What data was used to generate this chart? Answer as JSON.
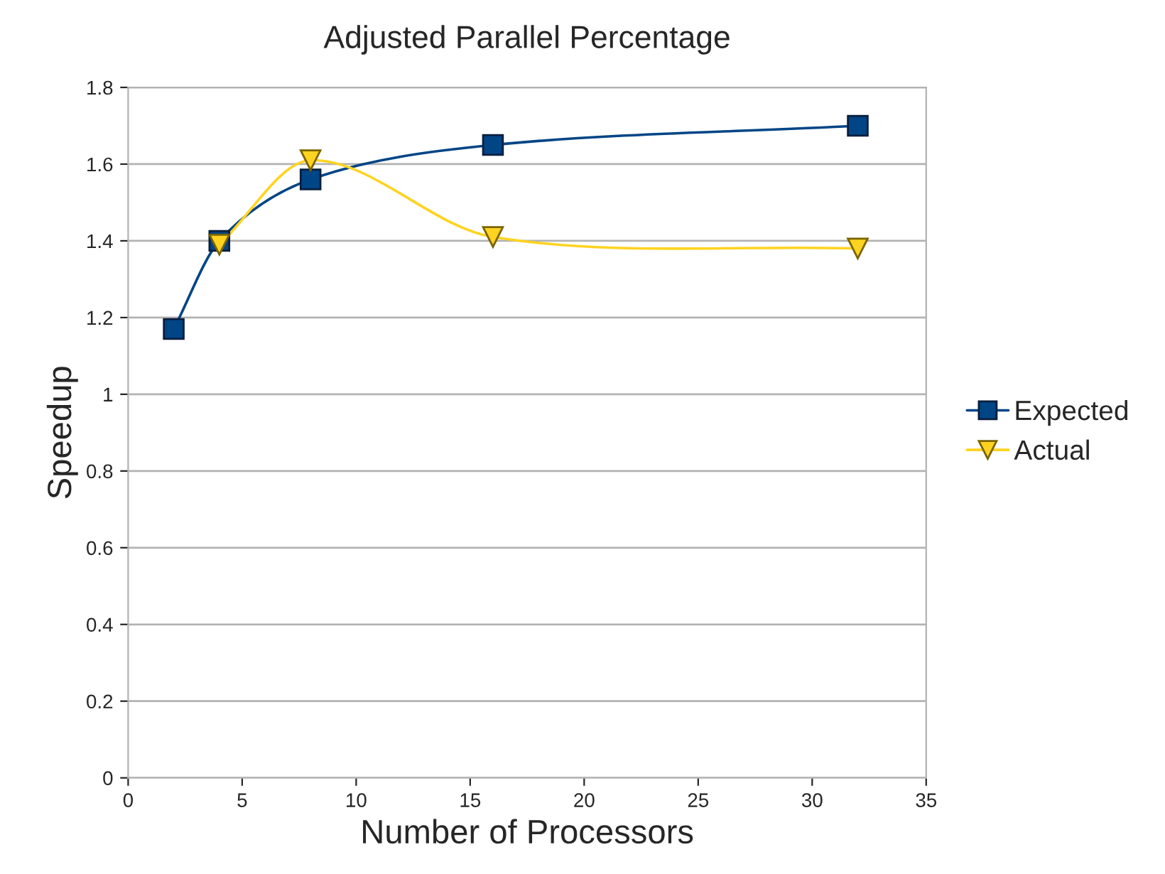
{
  "chart_data": {
    "type": "line",
    "title": "Adjusted Parallel Percentage",
    "xlabel": "Number of Processors",
    "ylabel": "Speedup",
    "xlim": [
      0,
      35
    ],
    "xticks": [
      0,
      5,
      10,
      15,
      20,
      25,
      30,
      35
    ],
    "ylim": [
      0,
      1.8
    ],
    "yticks": [
      0,
      0.2,
      0.4,
      0.6,
      0.8,
      1,
      1.2,
      1.4,
      1.6,
      1.8
    ],
    "grid": "y",
    "legend": "right",
    "series": [
      {
        "name": "Expected",
        "color": "#004586",
        "marker": "square",
        "x": [
          2,
          4,
          8,
          16,
          32
        ],
        "values": [
          1.17,
          1.4,
          1.56,
          1.65,
          1.7
        ]
      },
      {
        "name": "Actual",
        "color": "#ffd320",
        "marker": "triangle",
        "x": [
          4,
          8,
          16,
          32
        ],
        "values": [
          1.39,
          1.61,
          1.41,
          1.38
        ]
      }
    ]
  }
}
